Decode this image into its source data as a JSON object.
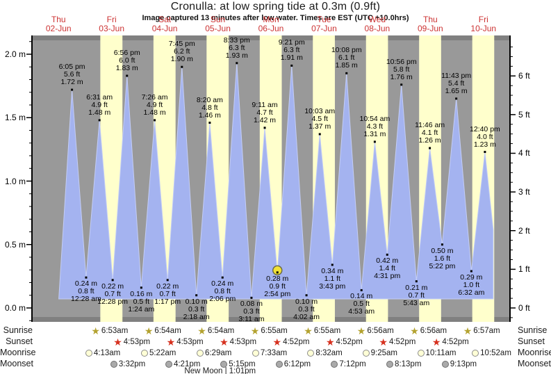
{
  "colors": {
    "night_band": "#999999",
    "day_band": "#ffffcc",
    "border_strip": "#808080",
    "tide_fill": "#a4b3f0",
    "tide_edge": "#c3cdf6",
    "axis": "#000000",
    "day_label_red": "#cc3333",
    "sunrise_star": "#b3a22f",
    "sunset_star": "#d6301e",
    "moonrise_fill": "#ffffd6",
    "moonrise_border": "#8a8a8a",
    "moonset_fill": "#aaaaaa",
    "moonset_border": "#6e6e6e",
    "current_marker_fill": "#f2e235",
    "current_marker_ring": "#6b6b4a"
  },
  "chart_data": {
    "type": "area",
    "title": "Cronulla: at low  spring tide at 0.3m (0.9ft)",
    "subtitle": "Image captured 13 minutes after low water. Times are EST (UTC +10.0hrs)",
    "ylabel_left_unit": "m",
    "ylabel_right_unit": "ft",
    "ylim_m": [
      -0.1,
      2.11
    ],
    "grid": false,
    "days": [
      {
        "weekday": "Thu",
        "date": "02-Jun"
      },
      {
        "weekday": "Fri",
        "date": "03-Jun"
      },
      {
        "weekday": "Sat",
        "date": "04-Jun"
      },
      {
        "weekday": "Sun",
        "date": "05-Jun"
      },
      {
        "weekday": "Mon",
        "date": "06-Jun"
      },
      {
        "weekday": "Tue",
        "date": "07-Jun"
      },
      {
        "weekday": "Wed",
        "date": "08-Jun"
      },
      {
        "weekday": "Thu",
        "date": "09-Jun"
      },
      {
        "weekday": "Fri",
        "date": "10-Jun"
      }
    ],
    "axes": {
      "left_ticks": [
        {
          "v": 0.0,
          "label": "0.0 m"
        },
        {
          "v": 0.5,
          "label": "0.5 m"
        },
        {
          "v": 1.0,
          "label": "1.0 m"
        },
        {
          "v": 1.5,
          "label": "1.5 m"
        },
        {
          "v": 2.0,
          "label": "2.0 m"
        }
      ],
      "right_ticks": [
        {
          "v": 0,
          "label": "0 ft"
        },
        {
          "v": 1,
          "label": "1 ft"
        },
        {
          "v": 2,
          "label": "2 ft"
        },
        {
          "v": 3,
          "label": "3 ft"
        },
        {
          "v": 4,
          "label": "4 ft"
        },
        {
          "v": 5,
          "label": "5 ft"
        },
        {
          "v": 6,
          "label": "6 ft"
        }
      ]
    },
    "events": [
      {
        "day": 0,
        "time": "6:05 pm",
        "m": 1.72,
        "ft": "5.6",
        "type": "high"
      },
      {
        "day": 1,
        "time": "12:28 am",
        "m": 0.24,
        "ft": "0.8",
        "type": "low"
      },
      {
        "day": 1,
        "time": "6:31 am",
        "m": 1.48,
        "ft": "4.9",
        "type": "high"
      },
      {
        "day": 1,
        "time": "12:28 pm",
        "m": 0.22,
        "ft": "0.7",
        "type": "low"
      },
      {
        "day": 1,
        "time": "6:56 pm",
        "m": 1.83,
        "ft": "6.0",
        "type": "high"
      },
      {
        "day": 2,
        "time": "1:24 am",
        "m": 0.16,
        "ft": "0.5",
        "type": "low"
      },
      {
        "day": 2,
        "time": "7:26 am",
        "m": 1.48,
        "ft": "4.9",
        "type": "high"
      },
      {
        "day": 2,
        "time": "1:17 pm",
        "m": 0.22,
        "ft": "0.7",
        "type": "low"
      },
      {
        "day": 2,
        "time": "7:45 pm",
        "m": 1.9,
        "ft": "6.2",
        "type": "high"
      },
      {
        "day": 3,
        "time": "2:18 am",
        "m": 0.1,
        "ft": "0.3",
        "type": "low"
      },
      {
        "day": 3,
        "time": "8:20 am",
        "m": 1.46,
        "ft": "4.8",
        "type": "high"
      },
      {
        "day": 3,
        "time": "2:06 pm",
        "m": 0.24,
        "ft": "0.8",
        "type": "low"
      },
      {
        "day": 3,
        "time": "8:33 pm",
        "m": 1.93,
        "ft": "6.3",
        "type": "high"
      },
      {
        "day": 4,
        "time": "3:11 am",
        "m": 0.08,
        "ft": "0.3",
        "type": "low"
      },
      {
        "day": 4,
        "time": "9:11 am",
        "m": 1.42,
        "ft": "4.7",
        "type": "high"
      },
      {
        "day": 4,
        "time": "2:54 pm",
        "m": 0.28,
        "ft": "0.9",
        "type": "low",
        "current": true
      },
      {
        "day": 4,
        "time": "9:21 pm",
        "m": 1.91,
        "ft": "6.3",
        "type": "high"
      },
      {
        "day": 5,
        "time": "4:02 am",
        "m": 0.1,
        "ft": "0.3",
        "type": "low"
      },
      {
        "day": 5,
        "time": "10:03 am",
        "m": 1.37,
        "ft": "4.5",
        "type": "high"
      },
      {
        "day": 5,
        "time": "3:43 pm",
        "m": 0.34,
        "ft": "1.1",
        "type": "low"
      },
      {
        "day": 5,
        "time": "10:08 pm",
        "m": 1.85,
        "ft": "6.1",
        "type": "high"
      },
      {
        "day": 6,
        "time": "4:53 am",
        "m": 0.14,
        "ft": "0.5",
        "type": "low"
      },
      {
        "day": 6,
        "time": "10:54 am",
        "m": 1.31,
        "ft": "4.3",
        "type": "high"
      },
      {
        "day": 6,
        "time": "4:31 pm",
        "m": 0.42,
        "ft": "1.4",
        "type": "low"
      },
      {
        "day": 6,
        "time": "10:56 pm",
        "m": 1.76,
        "ft": "5.8",
        "type": "high"
      },
      {
        "day": 7,
        "time": "5:43 am",
        "m": 0.21,
        "ft": "0.7",
        "type": "low"
      },
      {
        "day": 7,
        "time": "11:46 am",
        "m": 1.26,
        "ft": "4.1",
        "type": "high"
      },
      {
        "day": 7,
        "time": "5:22 pm",
        "m": 0.5,
        "ft": "1.6",
        "type": "low"
      },
      {
        "day": 7,
        "time": "11:43 pm",
        "m": 1.65,
        "ft": "5.4",
        "type": "high"
      },
      {
        "day": 8,
        "time": "6:32 am",
        "m": 0.29,
        "ft": "1.0",
        "type": "low"
      },
      {
        "day": 8,
        "time": "12:40 pm",
        "m": 1.23,
        "ft": "4.0",
        "type": "high"
      }
    ]
  },
  "astro": {
    "rows": [
      {
        "key": "sunrise",
        "label": "Sunrise",
        "icon": "sunrise-star-icon",
        "entries": [
          {
            "day": 1,
            "time": "6:53am"
          },
          {
            "day": 2,
            "time": "6:54am"
          },
          {
            "day": 3,
            "time": "6:54am"
          },
          {
            "day": 4,
            "time": "6:55am"
          },
          {
            "day": 5,
            "time": "6:55am"
          },
          {
            "day": 6,
            "time": "6:56am"
          },
          {
            "day": 7,
            "time": "6:56am"
          },
          {
            "day": 8,
            "time": "6:57am"
          }
        ]
      },
      {
        "key": "sunset",
        "label": "Sunset",
        "icon": "sunset-star-icon",
        "entries": [
          {
            "day": 1,
            "time": "4:53pm"
          },
          {
            "day": 2,
            "time": "4:53pm"
          },
          {
            "day": 3,
            "time": "4:53pm"
          },
          {
            "day": 4,
            "time": "4:52pm"
          },
          {
            "day": 5,
            "time": "4:52pm"
          },
          {
            "day": 6,
            "time": "4:52pm"
          },
          {
            "day": 7,
            "time": "4:52pm"
          }
        ]
      },
      {
        "key": "moonrise",
        "label": "Moonrise",
        "icon": "moonrise-icon",
        "entries": [
          {
            "day": 1,
            "time": "4:13am"
          },
          {
            "day": 2,
            "time": "5:22am"
          },
          {
            "day": 3,
            "time": "6:29am"
          },
          {
            "day": 4,
            "time": "7:33am"
          },
          {
            "day": 5,
            "time": "8:32am"
          },
          {
            "day": 6,
            "time": "9:25am"
          },
          {
            "day": 7,
            "time": "10:11am"
          },
          {
            "day": 8,
            "time": "10:52am"
          }
        ]
      },
      {
        "key": "moonset",
        "label": "Moonset",
        "icon": "moonset-icon",
        "entries": [
          {
            "day": 1,
            "time": "3:32pm"
          },
          {
            "day": 2,
            "time": "4:21pm"
          },
          {
            "day": 3,
            "time": "5:15pm"
          },
          {
            "day": 4,
            "time": "6:12pm"
          },
          {
            "day": 5,
            "time": "7:12pm"
          },
          {
            "day": 6,
            "time": "8:13pm"
          },
          {
            "day": 7,
            "time": "9:13pm"
          }
        ]
      }
    ],
    "moon_phase": {
      "name": "New Moon",
      "separator": "|",
      "time": "1:01pm",
      "day": 3
    }
  }
}
